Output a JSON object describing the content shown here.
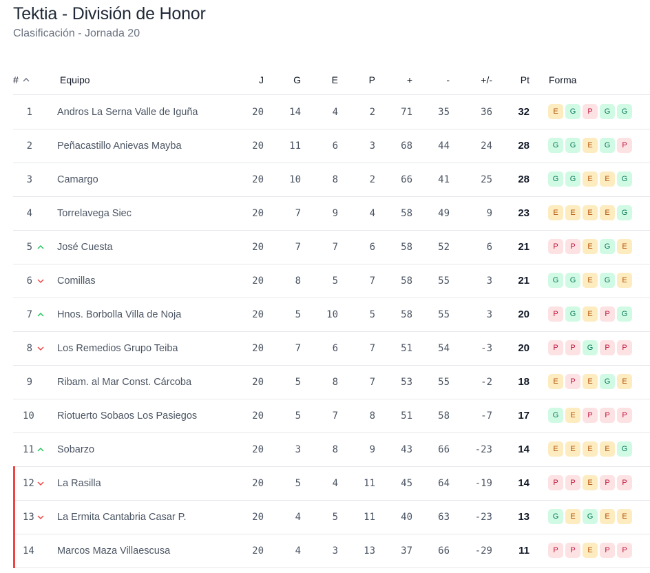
{
  "header": {
    "title": "Tektia - División de Honor",
    "subtitle": "Clasificación - Jornada 20"
  },
  "columns": {
    "pos": "#",
    "team": "Equipo",
    "j": "J",
    "g": "G",
    "e": "E",
    "p": "P",
    "gf": "+",
    "ga": "-",
    "gd": "+/-",
    "pt": "Pt",
    "form": "Forma"
  },
  "colors": {
    "up": "#22c55e",
    "down": "#ef4444",
    "relegation_bar": "#ef4444"
  },
  "rows": [
    {
      "pos": "1",
      "trend": "none",
      "team": "Andros La Serna Valle de Iguña",
      "j": "20",
      "g": "14",
      "e": "4",
      "p": "2",
      "gf": "71",
      "ga": "35",
      "gd": "36",
      "pt": "32",
      "form": [
        "E",
        "G",
        "P",
        "G",
        "G"
      ],
      "relegation": false
    },
    {
      "pos": "2",
      "trend": "none",
      "team": "Peñacastillo Anievas Mayba",
      "j": "20",
      "g": "11",
      "e": "6",
      "p": "3",
      "gf": "68",
      "ga": "44",
      "gd": "24",
      "pt": "28",
      "form": [
        "G",
        "G",
        "E",
        "G",
        "P"
      ],
      "relegation": false
    },
    {
      "pos": "3",
      "trend": "none",
      "team": "Camargo",
      "j": "20",
      "g": "10",
      "e": "8",
      "p": "2",
      "gf": "66",
      "ga": "41",
      "gd": "25",
      "pt": "28",
      "form": [
        "G",
        "G",
        "E",
        "E",
        "G"
      ],
      "relegation": false
    },
    {
      "pos": "4",
      "trend": "none",
      "team": "Torrelavega Siec",
      "j": "20",
      "g": "7",
      "e": "9",
      "p": "4",
      "gf": "58",
      "ga": "49",
      "gd": "9",
      "pt": "23",
      "form": [
        "E",
        "E",
        "E",
        "E",
        "G"
      ],
      "relegation": false
    },
    {
      "pos": "5",
      "trend": "up",
      "team": "José Cuesta",
      "j": "20",
      "g": "7",
      "e": "7",
      "p": "6",
      "gf": "58",
      "ga": "52",
      "gd": "6",
      "pt": "21",
      "form": [
        "P",
        "P",
        "E",
        "G",
        "E"
      ],
      "relegation": false
    },
    {
      "pos": "6",
      "trend": "down",
      "team": "Comillas",
      "j": "20",
      "g": "8",
      "e": "5",
      "p": "7",
      "gf": "58",
      "ga": "55",
      "gd": "3",
      "pt": "21",
      "form": [
        "G",
        "G",
        "E",
        "G",
        "E"
      ],
      "relegation": false
    },
    {
      "pos": "7",
      "trend": "up",
      "team": "Hnos. Borbolla Villa de Noja",
      "j": "20",
      "g": "5",
      "e": "10",
      "p": "5",
      "gf": "58",
      "ga": "55",
      "gd": "3",
      "pt": "20",
      "form": [
        "P",
        "G",
        "E",
        "P",
        "G"
      ],
      "relegation": false
    },
    {
      "pos": "8",
      "trend": "down",
      "team": "Los Remedios Grupo Teiba",
      "j": "20",
      "g": "7",
      "e": "6",
      "p": "7",
      "gf": "51",
      "ga": "54",
      "gd": "-3",
      "pt": "20",
      "form": [
        "P",
        "P",
        "G",
        "P",
        "P"
      ],
      "relegation": false
    },
    {
      "pos": "9",
      "trend": "none",
      "team": "Ribam. al Mar Const. Cárcoba",
      "j": "20",
      "g": "5",
      "e": "8",
      "p": "7",
      "gf": "53",
      "ga": "55",
      "gd": "-2",
      "pt": "18",
      "form": [
        "E",
        "P",
        "E",
        "G",
        "E"
      ],
      "relegation": false
    },
    {
      "pos": "10",
      "trend": "none",
      "team": "Riotuerto Sobaos Los Pasiegos",
      "j": "20",
      "g": "5",
      "e": "7",
      "p": "8",
      "gf": "51",
      "ga": "58",
      "gd": "-7",
      "pt": "17",
      "form": [
        "G",
        "E",
        "P",
        "P",
        "P"
      ],
      "relegation": false
    },
    {
      "pos": "11",
      "trend": "up",
      "team": "Sobarzo",
      "j": "20",
      "g": "3",
      "e": "8",
      "p": "9",
      "gf": "43",
      "ga": "66",
      "gd": "-23",
      "pt": "14",
      "form": [
        "E",
        "E",
        "E",
        "E",
        "G"
      ],
      "relegation": false
    },
    {
      "pos": "12",
      "trend": "down",
      "team": "La Rasilla",
      "j": "20",
      "g": "5",
      "e": "4",
      "p": "11",
      "gf": "45",
      "ga": "64",
      "gd": "-19",
      "pt": "14",
      "form": [
        "P",
        "P",
        "E",
        "P",
        "P"
      ],
      "relegation": true
    },
    {
      "pos": "13",
      "trend": "down",
      "team": "La Ermita Cantabria Casar P.",
      "j": "20",
      "g": "4",
      "e": "5",
      "p": "11",
      "gf": "40",
      "ga": "63",
      "gd": "-23",
      "pt": "13",
      "form": [
        "G",
        "E",
        "G",
        "E",
        "E"
      ],
      "relegation": true
    },
    {
      "pos": "14",
      "trend": "none",
      "team": "Marcos Maza Villaescusa",
      "j": "20",
      "g": "4",
      "e": "3",
      "p": "13",
      "gf": "37",
      "ga": "66",
      "gd": "-29",
      "pt": "11",
      "form": [
        "P",
        "P",
        "E",
        "P",
        "P"
      ],
      "relegation": true
    }
  ]
}
